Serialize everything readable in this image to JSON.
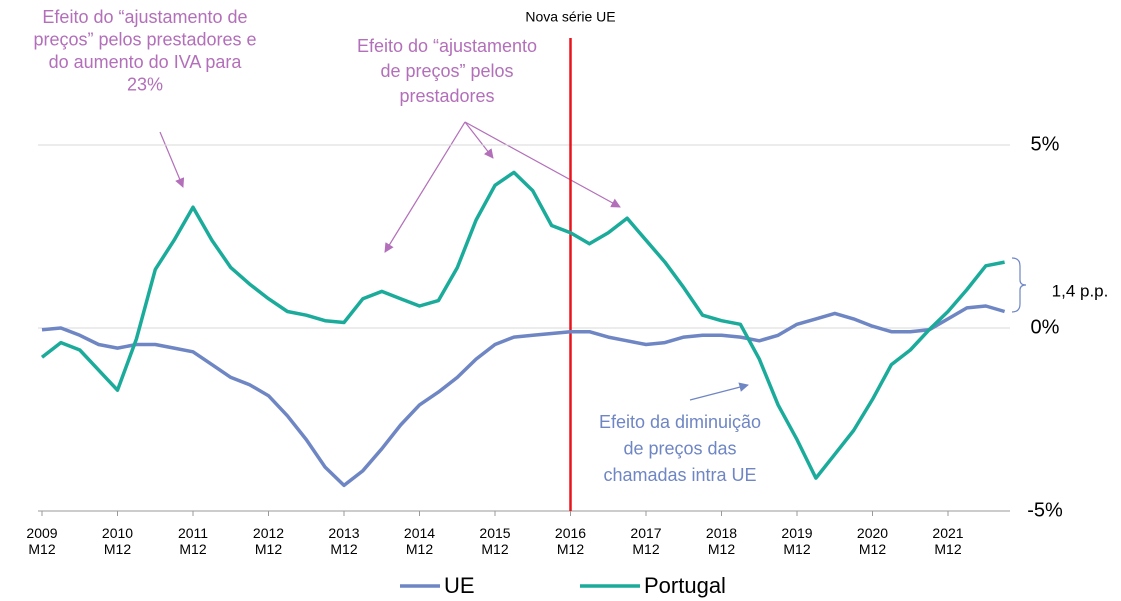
{
  "chart_data": {
    "type": "line",
    "categories": [
      "2009\nM12",
      null,
      null,
      null,
      "2010\nM12",
      null,
      null,
      null,
      "2011\nM12",
      null,
      null,
      null,
      "2012\nM12",
      null,
      null,
      null,
      "2013\nM12",
      null,
      null,
      null,
      "2014\nM12",
      null,
      null,
      null,
      "2015\nM12",
      null,
      null,
      null,
      "2016\nM12",
      null,
      null,
      null,
      "2017\nM12",
      null,
      null,
      null,
      "2018\nM12",
      null,
      null,
      null,
      "2019\nM12",
      null,
      null,
      null,
      "2020\nM12",
      null,
      null,
      null,
      "2021\nM12",
      null,
      null,
      null
    ],
    "series": [
      {
        "name": "UE",
        "color": "#6f86c4",
        "values": [
          -0.05,
          0,
          -0.2,
          -0.45,
          -0.55,
          -0.45,
          -0.45,
          -0.55,
          -0.65,
          -1.0,
          -1.35,
          -1.55,
          -1.85,
          -2.4,
          -3.05,
          -3.8,
          -4.3,
          -3.9,
          -3.3,
          -2.65,
          -2.1,
          -1.75,
          -1.35,
          -0.85,
          -0.45,
          -0.25,
          -0.2,
          -0.15,
          -0.1,
          -0.1,
          -0.25,
          -0.35,
          -0.45,
          -0.4,
          -0.25,
          -0.2,
          -0.2,
          -0.25,
          -0.35,
          -0.2,
          0.1,
          0.25,
          0.4,
          0.25,
          0.05,
          -0.1,
          -0.1,
          -0.05,
          0.25,
          0.55,
          0.6,
          0.45
        ]
      },
      {
        "name": "Portugal",
        "color": "#1bab9b",
        "values": [
          -0.8,
          -0.4,
          -0.6,
          -1.15,
          -1.7,
          -0.3,
          1.6,
          2.4,
          3.3,
          2.4,
          1.65,
          1.2,
          0.8,
          0.45,
          0.35,
          0.2,
          0.15,
          0.8,
          1.0,
          0.8,
          0.6,
          0.75,
          1.65,
          2.95,
          3.9,
          4.25,
          3.75,
          2.8,
          2.6,
          2.3,
          2.6,
          3.0,
          2.4,
          1.8,
          1.1,
          0.35,
          0.2,
          0.1,
          -0.85,
          -2.1,
          -3.05,
          -4.1,
          -3.45,
          -2.8,
          -1.95,
          -1.0,
          -0.6,
          -0.05,
          0.45,
          1.05,
          1.7,
          1.8
        ]
      }
    ],
    "ylim": [
      -5,
      5
    ],
    "yticks": [
      {
        "value": -5,
        "label": "-5%"
      },
      {
        "value": 0,
        "label": "0%"
      },
      {
        "value": 5,
        "label": "5%"
      }
    ],
    "grid": true,
    "legend": "bottom",
    "vline": {
      "label": "Nova série UE",
      "category": "2016\nM12",
      "color": "#e8141b"
    },
    "annotations": [
      {
        "color": "#b36fba",
        "lines": [
          "Efeito do “ajustamento de",
          "preços” pelos prestadores e",
          "do aumento do IVA para",
          "23%"
        ]
      },
      {
        "color": "#b36fba",
        "lines": [
          "Efeito do “ajustamento",
          "de preços” pelos",
          "prestadores"
        ]
      },
      {
        "color": "#6f86c4",
        "lines": [
          "Efeito da diminuição",
          "de preços das",
          "chamadas intra UE"
        ]
      },
      {
        "color": "#000000",
        "lines": [
          "1,4 p.p."
        ]
      }
    ]
  }
}
